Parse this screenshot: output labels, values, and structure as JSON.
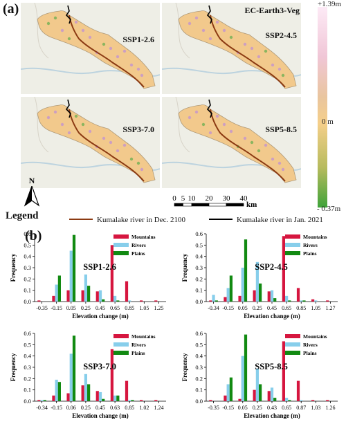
{
  "panel_a": {
    "letter": "(a)",
    "model": "EC-Earth3-Veg",
    "scenarios": [
      "SSP1-2.6",
      "SSP2-4.5",
      "SSP3-7.0",
      "SSP5-8.5"
    ],
    "colorbar": {
      "max_label": "+1.39m",
      "mid_label": "0 m",
      "min_label": "- 0.37m",
      "colors": {
        "high": "#fdeaf6",
        "mid": "#f5cf8a",
        "low": "#3fa33a"
      }
    },
    "scale_bar": {
      "ticks": [
        "0",
        "5",
        "10",
        "20",
        "30",
        "40"
      ],
      "unit": "km"
    },
    "north": "N",
    "legend": {
      "title": "Legend",
      "item1": "Kumalake river in Dec. 2100",
      "item2": "Kumalake river in Jan. 2021",
      "colors": {
        "item1": "#8b3a12",
        "item2": "#000000"
      }
    }
  },
  "panel_b": {
    "letter": "(b)"
  },
  "series_colors": {
    "Mountains": "#d6163f",
    "Rivers": "#87ceeb",
    "Plains": "#128a12"
  },
  "chart_data": [
    {
      "type": "bar",
      "title": "SSP1-2.6",
      "xlabel": "Elevation change (m)",
      "ylabel": "Frequency",
      "ylim": [
        0,
        0.6
      ],
      "yticks": [
        "0.0",
        "0.1",
        "0.2",
        "0.3",
        "0.4",
        "0.5",
        "0.6"
      ],
      "categories": [
        "-0.35",
        "-0.15",
        "0.05",
        "0.25",
        "0.45",
        "0.65",
        "0.85",
        "1.05",
        "1.25"
      ],
      "series": [
        {
          "name": "Mountains",
          "values": [
            0.01,
            0.05,
            0.1,
            0.1,
            0.09,
            0.5,
            0.18,
            0.01,
            0.01
          ]
        },
        {
          "name": "Rivers",
          "values": [
            0.0,
            0.15,
            0.45,
            0.24,
            0.1,
            0.05,
            0.01,
            0.0,
            0.0
          ]
        },
        {
          "name": "Plains",
          "values": [
            0.0,
            0.23,
            0.59,
            0.14,
            0.02,
            0.01,
            0.0,
            0.0,
            0.0
          ]
        }
      ]
    },
    {
      "type": "bar",
      "title": "SSP2-4.5",
      "xlabel": "Elevation change (m)",
      "ylabel": "Frequency",
      "ylim": [
        0,
        0.6
      ],
      "yticks": [
        "0.0",
        "0.1",
        "0.2",
        "0.3",
        "0.4",
        "0.5",
        "0.6"
      ],
      "categories": [
        "-0.34",
        "-0.15",
        "0.05",
        "0.25",
        "0.45",
        "0.65",
        "0.85",
        "1.05",
        "1.27"
      ],
      "series": [
        {
          "name": "Mountains",
          "values": [
            0.01,
            0.04,
            0.05,
            0.1,
            0.09,
            0.58,
            0.12,
            0.02,
            0.01
          ]
        },
        {
          "name": "Rivers",
          "values": [
            0.06,
            0.12,
            0.3,
            0.35,
            0.1,
            0.05,
            0.01,
            0.01,
            0.0
          ]
        },
        {
          "name": "Plains",
          "values": [
            0.01,
            0.23,
            0.55,
            0.16,
            0.03,
            0.01,
            0.01,
            0.0,
            0.0
          ]
        }
      ]
    },
    {
      "type": "bar",
      "title": "SSP3-7.0",
      "xlabel": "Elevation change (m)",
      "ylabel": "Frequency",
      "ylim": [
        0,
        0.6
      ],
      "yticks": [
        "0.0",
        "0.1",
        "0.2",
        "0.3",
        "0.4",
        "0.5",
        "0.6"
      ],
      "categories": [
        "-0.34",
        "-0.15",
        "0.06",
        "0.25",
        "0.45",
        "0.63",
        "0.85",
        "1.02",
        "1.24"
      ],
      "series": [
        {
          "name": "Mountains",
          "values": [
            0.01,
            0.05,
            0.07,
            0.14,
            0.09,
            0.46,
            0.18,
            0.01,
            0.01
          ]
        },
        {
          "name": "Rivers",
          "values": [
            0.01,
            0.19,
            0.42,
            0.24,
            0.08,
            0.05,
            0.01,
            0.0,
            0.0
          ]
        },
        {
          "name": "Plains",
          "values": [
            0.01,
            0.17,
            0.58,
            0.15,
            0.02,
            0.05,
            0.01,
            0.0,
            0.0
          ]
        }
      ]
    },
    {
      "type": "bar",
      "title": "SSP5-8.5",
      "xlabel": "Elevation change (m)",
      "ylabel": "Frequency",
      "ylim": [
        0,
        0.6
      ],
      "yticks": [
        "0.0",
        "0.1",
        "0.2",
        "0.3",
        "0.4",
        "0.5",
        "0.6"
      ],
      "categories": [
        "-0.35",
        "-0.15",
        "0.05",
        "0.25",
        "0.43",
        "0.65",
        "0.87",
        "1.03",
        "1.26"
      ],
      "series": [
        {
          "name": "Mountains",
          "values": [
            0.01,
            0.05,
            0.02,
            0.1,
            0.09,
            0.53,
            0.18,
            0.01,
            0.01
          ]
        },
        {
          "name": "Rivers",
          "values": [
            0.0,
            0.15,
            0.4,
            0.29,
            0.12,
            0.03,
            0.01,
            0.0,
            0.0
          ]
        },
        {
          "name": "Plains",
          "values": [
            0.0,
            0.21,
            0.59,
            0.15,
            0.03,
            0.01,
            0.0,
            0.0,
            0.0
          ]
        }
      ]
    }
  ]
}
